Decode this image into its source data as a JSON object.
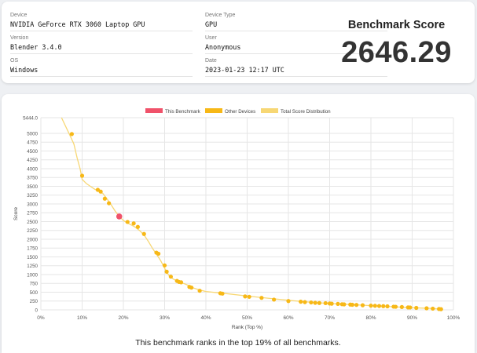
{
  "device_info": {
    "device": {
      "label": "Device",
      "value": "NVIDIA GeForce RTX 3060 Laptop GPU"
    },
    "version": {
      "label": "Version",
      "value": "Blender 3.4.0"
    },
    "os": {
      "label": "OS",
      "value": "Windows"
    },
    "device_type": {
      "label": "Device Type",
      "value": "GPU"
    },
    "user": {
      "label": "User",
      "value": "Anonymous"
    },
    "date": {
      "label": "Date",
      "value": "2023-01-23 12:17 UTC"
    }
  },
  "score_panel": {
    "title": "Benchmark Score",
    "value": "2646.29"
  },
  "summary": "This benchmark ranks in the top 19% of all benchmarks.",
  "colors": {
    "this_benchmark": "#f0526a",
    "other_devices": "#f7b817",
    "distribution": "#f7d774",
    "grid": "#e6e6e6"
  },
  "chart_data": {
    "type": "scatter",
    "title": "",
    "xlabel": "Rank (Top %)",
    "ylabel": "Score",
    "xlim": [
      0,
      100
    ],
    "ylim": [
      0,
      5444
    ],
    "x_ticks": [
      "0%",
      "10%",
      "20%",
      "30%",
      "40%",
      "50%",
      "60%",
      "70%",
      "80%",
      "90%",
      "100%"
    ],
    "y_ticks": [
      "0",
      "250",
      "500",
      "750",
      "1000",
      "1250",
      "1500",
      "1750",
      "2000",
      "2250",
      "2500",
      "2750",
      "3000",
      "3250",
      "3500",
      "3750",
      "4000",
      "4250",
      "4500",
      "4750",
      "5000",
      "5444.0"
    ],
    "y_tick_values": [
      0,
      250,
      500,
      750,
      1000,
      1250,
      1500,
      1750,
      2000,
      2250,
      2500,
      2750,
      3000,
      3250,
      3500,
      3750,
      4000,
      4250,
      4500,
      4750,
      5000,
      5444
    ],
    "legend": {
      "position": "top",
      "entries": [
        "This Benchmark",
        "Other Devices",
        "Total Score Distribution"
      ]
    },
    "grid": true,
    "series": [
      {
        "name": "Total Score Distribution",
        "kind": "line",
        "x": [
          5,
          6,
          7,
          8,
          8.8,
          9.5,
          10,
          11,
          12,
          13,
          14,
          15,
          16,
          17,
          18,
          19,
          20,
          21,
          22,
          23,
          24,
          25,
          26,
          27,
          28,
          29,
          30,
          31,
          32,
          33,
          34,
          35,
          36,
          37,
          38,
          40,
          45,
          50,
          55,
          60,
          65,
          70,
          75,
          80,
          85,
          90,
          95,
          97
        ],
        "y": [
          5444,
          5200,
          4950,
          4700,
          4300,
          4000,
          3700,
          3580,
          3500,
          3420,
          3360,
          3300,
          3150,
          2980,
          2800,
          2646,
          2530,
          2460,
          2400,
          2330,
          2240,
          2120,
          1950,
          1750,
          1580,
          1400,
          1180,
          980,
          880,
          820,
          770,
          730,
          680,
          620,
          580,
          520,
          460,
          390,
          330,
          270,
          220,
          180,
          150,
          120,
          90,
          60,
          40,
          20
        ]
      },
      {
        "name": "Other Devices",
        "kind": "scatter",
        "x": [
          7.5,
          10,
          13.8,
          14.5,
          15.5,
          16.5,
          21,
          22.5,
          23.5,
          25,
          28,
          28.5,
          30,
          30.5,
          31.5,
          33,
          33.5,
          34,
          36,
          36.5,
          38.5,
          43.5,
          44,
          49.5,
          50.5,
          53.5,
          56.5,
          60,
          63,
          64,
          65.5,
          66.5,
          67.5,
          69,
          70,
          70.5,
          72,
          73,
          73.5,
          75,
          75.5,
          76.5,
          78,
          80,
          81,
          82,
          83,
          84,
          85.5,
          86,
          87.5,
          89,
          89.5,
          91,
          93.5,
          95,
          96.5,
          97
        ],
        "y": [
          4980,
          3800,
          3400,
          3350,
          3150,
          3020,
          2490,
          2450,
          2350,
          2150,
          1620,
          1590,
          1260,
          1080,
          940,
          820,
          790,
          780,
          650,
          630,
          540,
          470,
          460,
          380,
          370,
          340,
          290,
          250,
          230,
          220,
          210,
          200,
          195,
          190,
          180,
          175,
          170,
          160,
          155,
          150,
          145,
          140,
          130,
          120,
          115,
          110,
          105,
          100,
          90,
          88,
          80,
          70,
          68,
          55,
          45,
          35,
          25,
          20
        ]
      },
      {
        "name": "This Benchmark",
        "kind": "scatter",
        "x": [
          19
        ],
        "y": [
          2646.29
        ]
      }
    ]
  }
}
